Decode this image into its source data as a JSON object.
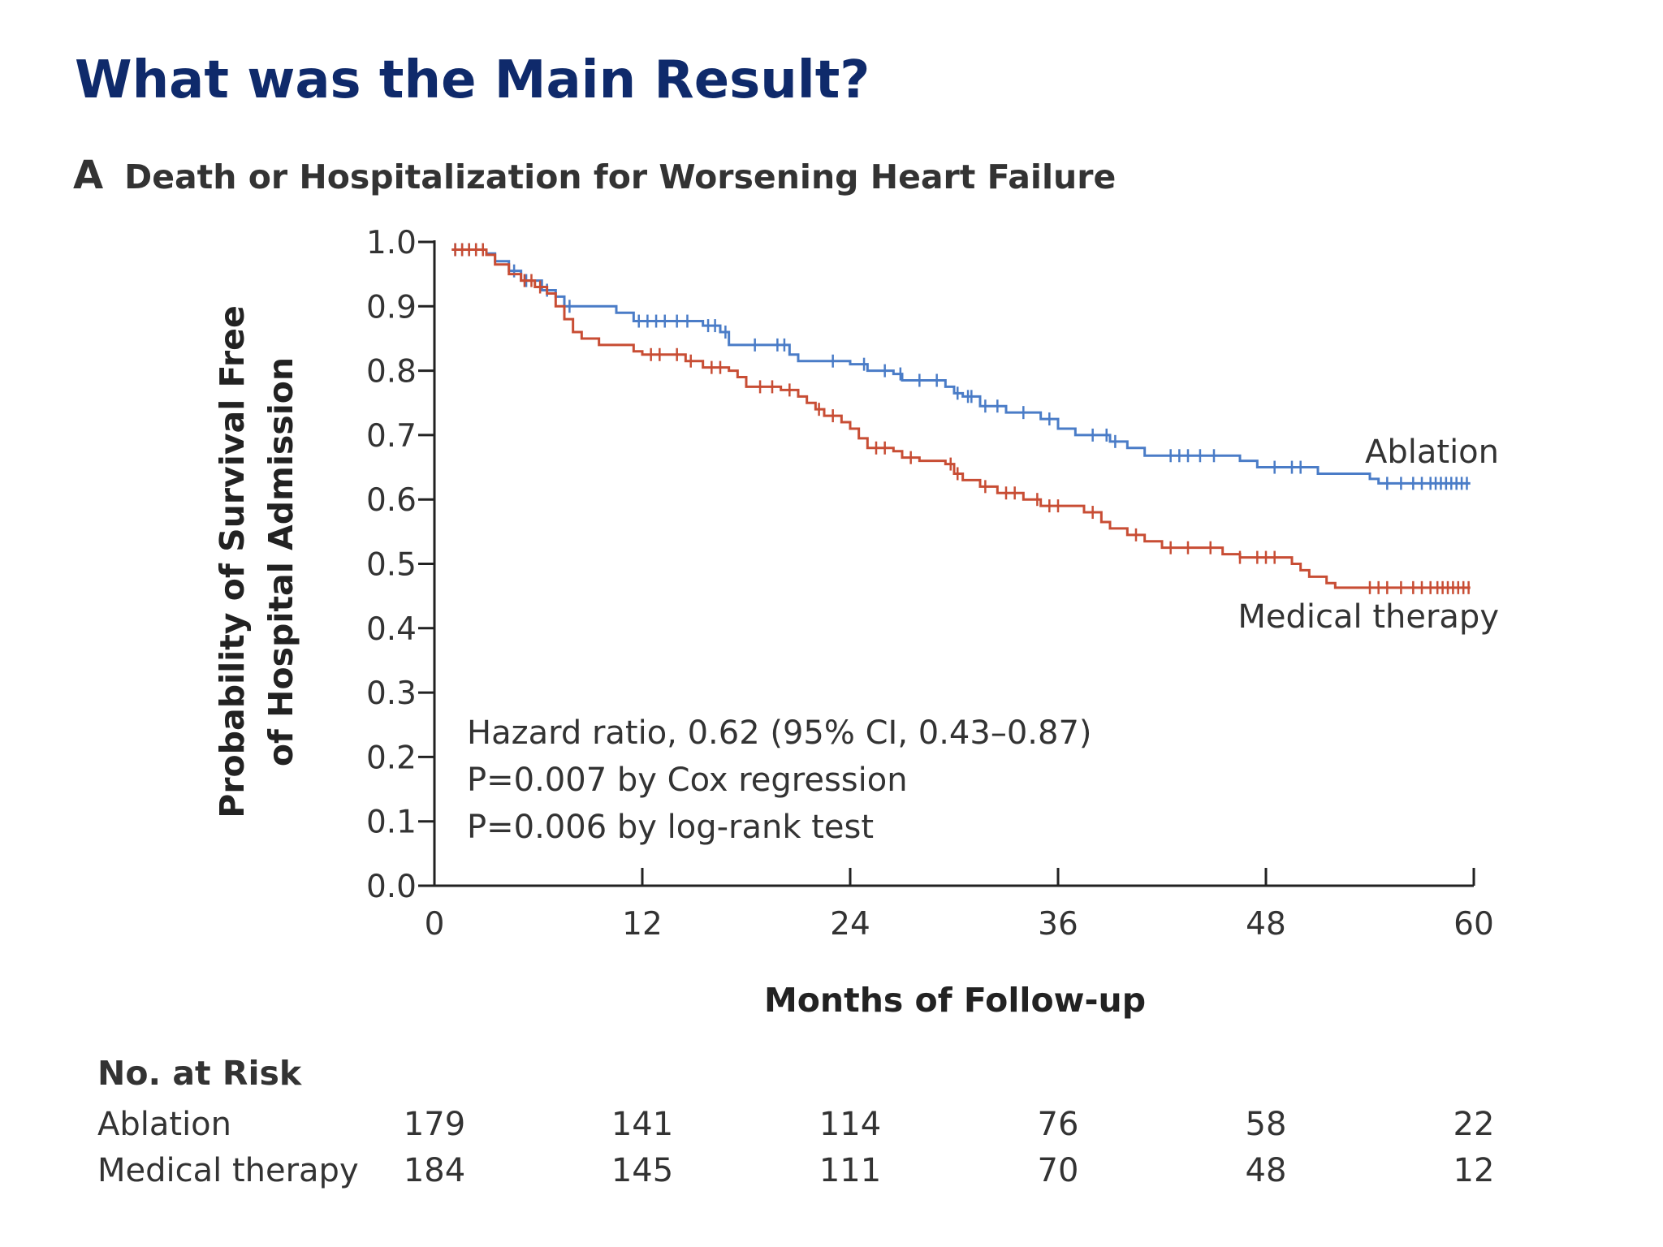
{
  "slide": {
    "title": "What was the Main Result?"
  },
  "panel": {
    "letter": "A",
    "title": "Death or Hospitalization for Worsening Heart Failure"
  },
  "chart_data": {
    "type": "line",
    "title": "Death or Hospitalization for Worsening Heart Failure",
    "xlabel": "Months of Follow-up",
    "ylabel_lines": [
      "Probability of Survival Free",
      "of Hospital Admission"
    ],
    "xlim": [
      0,
      60
    ],
    "ylim": [
      0,
      1.0
    ],
    "x_ticks": [
      "0",
      "12",
      "24",
      "36",
      "48",
      "60"
    ],
    "y_ticks": [
      "0.0",
      "0.1",
      "0.2",
      "0.3",
      "0.4",
      "0.5",
      "0.6",
      "0.7",
      "0.8",
      "0.9",
      "1.0"
    ],
    "grid": false,
    "series": [
      {
        "name": "Ablation",
        "color": "#4a7cc7",
        "step_points": [
          [
            1,
            0.988
          ],
          [
            3,
            0.982
          ],
          [
            3.5,
            0.97
          ],
          [
            4.3,
            0.955
          ],
          [
            5.0,
            0.94
          ],
          [
            6.2,
            0.925
          ],
          [
            7.0,
            0.915
          ],
          [
            7.5,
            0.9
          ],
          [
            10.5,
            0.89
          ],
          [
            11.5,
            0.877
          ],
          [
            15.5,
            0.87
          ],
          [
            16.5,
            0.86
          ],
          [
            17.0,
            0.84
          ],
          [
            20.5,
            0.825
          ],
          [
            21.0,
            0.815
          ],
          [
            24.0,
            0.81
          ],
          [
            25.0,
            0.8
          ],
          [
            26.5,
            0.795
          ],
          [
            27.0,
            0.785
          ],
          [
            29.5,
            0.775
          ],
          [
            30.0,
            0.765
          ],
          [
            30.5,
            0.76
          ],
          [
            31.5,
            0.745
          ],
          [
            33.0,
            0.735
          ],
          [
            35.0,
            0.725
          ],
          [
            36.0,
            0.71
          ],
          [
            37.0,
            0.7
          ],
          [
            39.0,
            0.69
          ],
          [
            40.0,
            0.68
          ],
          [
            41.0,
            0.668
          ],
          [
            46.5,
            0.66
          ],
          [
            47.5,
            0.65
          ],
          [
            51.0,
            0.64
          ],
          [
            54.0,
            0.632
          ],
          [
            54.5,
            0.625
          ],
          [
            59.8,
            0.625
          ]
        ],
        "censor_x": [
          1.2,
          1.6,
          2.0,
          2.4,
          2.8,
          4.6,
          5.3,
          6.5,
          7.8,
          11.8,
          12.3,
          12.8,
          13.3,
          14.0,
          14.6,
          15.8,
          16.2,
          16.8,
          18.5,
          19.8,
          20.2,
          23.0,
          24.8,
          26.0,
          26.9,
          28.0,
          29.0,
          30.2,
          30.8,
          31.0,
          31.8,
          32.5,
          34.0,
          35.5,
          38.0,
          38.8,
          39.3,
          42.5,
          43.0,
          43.5,
          44.2,
          45.0,
          48.5,
          49.5,
          50.0,
          55.0,
          55.8,
          56.5,
          57.0,
          57.5,
          57.8,
          58.1,
          58.4,
          58.7,
          59.0,
          59.3,
          59.6
        ]
      },
      {
        "name": "Medical therapy",
        "color": "#c84d34",
        "step_points": [
          [
            1,
            0.988
          ],
          [
            3,
            0.98
          ],
          [
            3.5,
            0.965
          ],
          [
            4.3,
            0.95
          ],
          [
            5.0,
            0.94
          ],
          [
            5.8,
            0.93
          ],
          [
            6.5,
            0.92
          ],
          [
            7.0,
            0.9
          ],
          [
            7.5,
            0.88
          ],
          [
            8.0,
            0.86
          ],
          [
            8.5,
            0.85
          ],
          [
            9.5,
            0.84
          ],
          [
            11.5,
            0.83
          ],
          [
            12.0,
            0.825
          ],
          [
            14.5,
            0.815
          ],
          [
            15.5,
            0.805
          ],
          [
            17.0,
            0.8
          ],
          [
            17.5,
            0.79
          ],
          [
            18.0,
            0.775
          ],
          [
            20.0,
            0.77
          ],
          [
            21.0,
            0.76
          ],
          [
            21.5,
            0.75
          ],
          [
            22.0,
            0.74
          ],
          [
            22.5,
            0.73
          ],
          [
            23.5,
            0.72
          ],
          [
            24.0,
            0.71
          ],
          [
            24.5,
            0.695
          ],
          [
            25.0,
            0.68
          ],
          [
            26.5,
            0.675
          ],
          [
            27.0,
            0.665
          ],
          [
            28.0,
            0.66
          ],
          [
            29.5,
            0.655
          ],
          [
            30.0,
            0.64
          ],
          [
            30.5,
            0.63
          ],
          [
            31.5,
            0.62
          ],
          [
            32.5,
            0.61
          ],
          [
            34.0,
            0.6
          ],
          [
            35.0,
            0.59
          ],
          [
            37.5,
            0.58
          ],
          [
            38.5,
            0.565
          ],
          [
            39.0,
            0.555
          ],
          [
            40.0,
            0.545
          ],
          [
            41.0,
            0.535
          ],
          [
            42.0,
            0.525
          ],
          [
            45.5,
            0.515
          ],
          [
            46.5,
            0.51
          ],
          [
            49.5,
            0.5
          ],
          [
            50.0,
            0.49
          ],
          [
            50.5,
            0.48
          ],
          [
            51.5,
            0.47
          ],
          [
            52.0,
            0.463
          ],
          [
            59.8,
            0.463
          ]
        ],
        "censor_x": [
          1.2,
          1.6,
          2.0,
          2.4,
          2.8,
          5.2,
          5.6,
          6.1,
          12.5,
          13.0,
          14.0,
          14.8,
          16.0,
          16.5,
          18.8,
          19.5,
          20.5,
          22.2,
          23.0,
          25.5,
          26.0,
          27.5,
          29.8,
          30.2,
          31.8,
          33.0,
          33.5,
          34.8,
          35.5,
          36.0,
          38.0,
          40.5,
          42.5,
          43.5,
          44.8,
          46.5,
          47.5,
          48.0,
          48.5,
          54.0,
          54.5,
          55.0,
          55.8,
          56.5,
          57.0,
          57.5,
          57.9,
          58.2,
          58.5,
          58.8,
          59.1,
          59.4,
          59.7
        ]
      }
    ],
    "series_labels": [
      "Ablation",
      "Medical therapy"
    ],
    "annotations": [
      "Hazard ratio, 0.62 (95% CI, 0.43–0.87)",
      "P=0.007 by Cox regression",
      "P=0.006 by log-rank test"
    ]
  },
  "risk_table": {
    "title": "No. at Risk",
    "months": [
      0,
      12,
      24,
      36,
      48,
      60
    ],
    "rows": [
      {
        "label": "Ablation",
        "values": [
          "179",
          "141",
          "114",
          "76",
          "58",
          "22"
        ]
      },
      {
        "label": "Medical therapy",
        "values": [
          "184",
          "145",
          "111",
          "70",
          "48",
          "12"
        ]
      }
    ]
  }
}
